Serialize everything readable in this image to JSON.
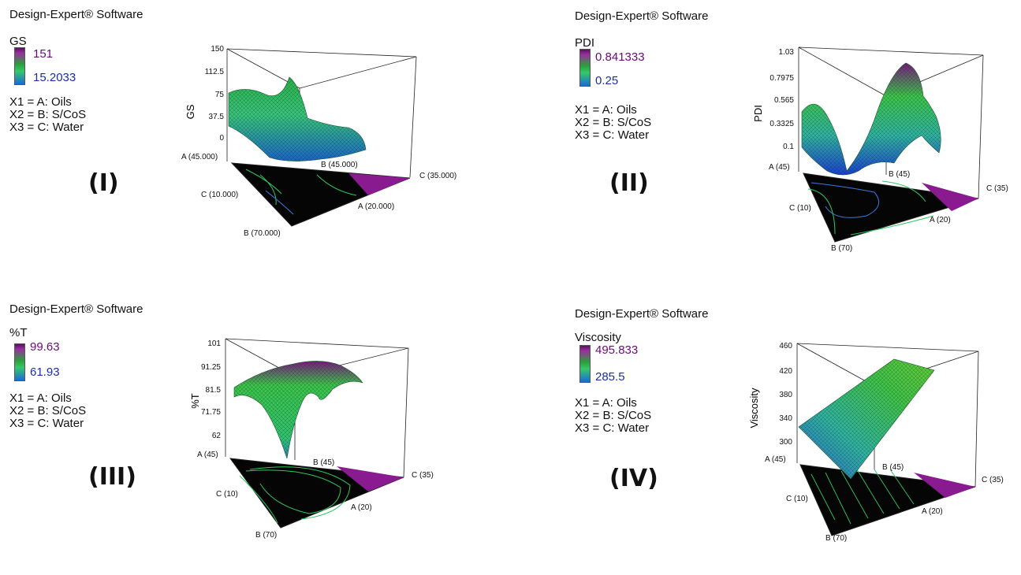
{
  "panels": [
    {
      "software": "Design-Expert® Software",
      "response": "GS",
      "legend_max": "151",
      "legend_min": "15.2033",
      "factors": [
        "X1 = A: Oils",
        "X2 = B: S/CoS",
        "X3 = C: Water"
      ],
      "label": "(I)",
      "z_axis_label": "GS",
      "z_ticks": [
        "150",
        "112.5",
        "75",
        "37.5",
        "0"
      ],
      "vertex_labels": {
        "a_high": "A (45.000)",
        "b_high": "B (45.000)",
        "c_high": "C (35.000)",
        "c_low": "C (10.000)",
        "a_low": "A (20.000)",
        "b_low": "B (70.000)"
      }
    },
    {
      "software": "Design-Expert® Software",
      "response": "PDI",
      "legend_max": "0.841333",
      "legend_min": "0.25",
      "factors": [
        "X1 = A: Oils",
        "X2 = B: S/CoS",
        "X3 = C: Water"
      ],
      "label": "(II)",
      "z_axis_label": "PDI",
      "z_ticks": [
        "1.03",
        "0.7975",
        "0.565",
        "0.3325",
        "0.1"
      ],
      "vertex_labels": {
        "a_high": "A (45)",
        "b_high": "B (45)",
        "c_high": "C (35)",
        "c_low": "C (10)",
        "a_low": "A (20)",
        "b_low": "B (70)"
      }
    },
    {
      "software": "Design-Expert® Software",
      "response": "%T",
      "legend_max": "99.63",
      "legend_min": "61.93",
      "factors": [
        "X1 = A: Oils",
        "X2 = B: S/CoS",
        "X3 = C: Water"
      ],
      "label": "(III)",
      "z_axis_label": "%T",
      "z_ticks": [
        "101",
        "91.25",
        "81.5",
        "71.75",
        "62"
      ],
      "vertex_labels": {
        "a_high": "A (45)",
        "b_high": "B (45)",
        "c_high": "C (35)",
        "c_low": "C (10)",
        "a_low": "A (20)",
        "b_low": "B (70)"
      }
    },
    {
      "software": "Design-Expert® Software",
      "response": "Viscosity",
      "legend_max": "495.833",
      "legend_min": "285.5",
      "factors": [
        "X1 = A: Oils",
        "X2 = B: S/CoS",
        "X3 = C: Water"
      ],
      "label": "(IV)",
      "z_axis_label": "Viscosity",
      "z_ticks": [
        "460",
        "420",
        "380",
        "340",
        "300"
      ],
      "vertex_labels": {
        "a_high": "A (45)",
        "b_high": "B (45)",
        "c_high": "C (35)",
        "c_low": "C (10)",
        "a_low": "A (20)",
        "b_low": "B (70)"
      }
    }
  ],
  "chart_data": [
    {
      "type": "surface",
      "title": "",
      "zlabel": "GS",
      "zlim": [
        0,
        150
      ],
      "legend_range": [
        15.2033,
        151
      ]
    },
    {
      "type": "surface",
      "title": "",
      "zlabel": "PDI",
      "zlim": [
        0.1,
        1.03
      ],
      "legend_range": [
        0.25,
        0.841333
      ]
    },
    {
      "type": "surface",
      "title": "",
      "zlabel": "%T",
      "zlim": [
        62,
        101
      ],
      "legend_range": [
        61.93,
        99.63
      ]
    },
    {
      "type": "surface",
      "title": "",
      "zlabel": "Viscosity",
      "zlim": [
        300,
        460
      ],
      "legend_range": [
        285.5,
        495.833
      ]
    }
  ]
}
